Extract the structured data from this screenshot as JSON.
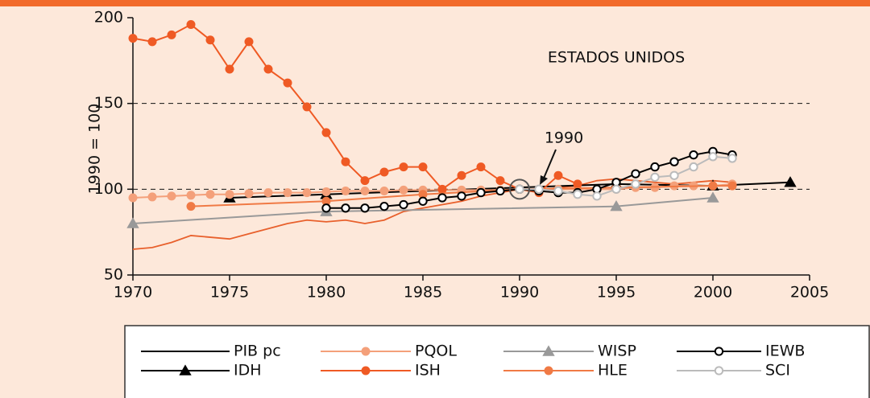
{
  "chart_data": {
    "type": "line",
    "annotations": [
      "ESTADOS UNIDOS",
      "1990"
    ],
    "ylabel": "1990 = 100",
    "xlim": [
      1970,
      2005
    ],
    "xticks": [
      1970,
      1975,
      1980,
      1985,
      1990,
      1995,
      2000,
      2005
    ],
    "ylim": [
      50,
      200
    ],
    "yticks": [
      50,
      100,
      150,
      200
    ],
    "grid": true,
    "series": [
      {
        "name": "PIB pc",
        "color": "#e8602c",
        "marker": "none",
        "legend_color": "#000000",
        "x": [
          1970,
          1971,
          1972,
          1973,
          1974,
          1975,
          1976,
          1977,
          1978,
          1979,
          1980,
          1981,
          1982,
          1983,
          1984,
          1985,
          1986,
          1987,
          1988,
          1989,
          1990,
          1991,
          1992,
          1993,
          1994,
          1995,
          1996,
          1997,
          1998,
          1999,
          2000,
          2001
        ],
        "values": [
          65,
          66,
          69,
          73,
          72,
          71,
          74,
          77,
          80,
          82,
          81,
          82,
          80,
          82,
          87,
          89,
          91,
          93,
          96,
          98,
          100,
          99,
          101,
          102,
          105,
          106,
          105,
          104,
          103,
          104,
          105,
          104
        ]
      },
      {
        "name": "IDH",
        "color": "#000000",
        "marker": "triangle",
        "x": [
          1975,
          1980,
          1995,
          2000,
          2004
        ],
        "values": [
          95,
          97,
          103,
          102,
          104
        ]
      },
      {
        "name": "PQOL",
        "color": "#f4a07a",
        "marker": "circle",
        "x": [
          1970,
          1971,
          1972,
          1973,
          1974,
          1975,
          1976,
          1977,
          1978,
          1979,
          1980,
          1981,
          1982,
          1983,
          1984,
          1985,
          1986,
          1987,
          1988,
          1989,
          1990,
          1991,
          1992,
          1993,
          1994,
          1995,
          1996,
          1997,
          1998,
          1999,
          2000,
          2001
        ],
        "values": [
          95,
          95.5,
          96,
          96.5,
          97,
          97,
          97.5,
          98,
          98,
          98,
          98.5,
          99,
          99,
          99,
          99.5,
          99.5,
          99.5,
          99.5,
          99.5,
          99.5,
          100,
          100,
          100,
          100,
          100,
          100,
          101,
          101,
          102,
          102,
          102,
          103
        ]
      },
      {
        "name": "ISH",
        "color": "#ef5a24",
        "marker": "circle",
        "x": [
          1970,
          1971,
          1972,
          1973,
          1974,
          1975,
          1976,
          1977,
          1978,
          1979,
          1980,
          1981,
          1982,
          1983,
          1984,
          1985,
          1986,
          1987,
          1988,
          1989,
          1990,
          1991,
          1992,
          1993
        ],
        "values": [
          188,
          186,
          190,
          196,
          187,
          170,
          186,
          170,
          162,
          148,
          133,
          116,
          105,
          110,
          113,
          113,
          100,
          108,
          113,
          105,
          100,
          98,
          108,
          103
        ]
      },
      {
        "name": "WISP",
        "color": "#999999",
        "marker": "triangle",
        "x": [
          1970,
          1980,
          1995,
          2000
        ],
        "values": [
          80,
          87,
          90,
          95
        ]
      },
      {
        "name": "HLE",
        "color": "#f07a45",
        "marker": "circle",
        "x": [
          1973,
          1980,
          1985,
          1990,
          1995,
          2000,
          2001
        ],
        "values": [
          90,
          93,
          97,
          100,
          101,
          102,
          102
        ]
      },
      {
        "name": "IEWB",
        "color": "#000000",
        "marker": "open-circle",
        "x": [
          1980,
          1981,
          1982,
          1983,
          1984,
          1985,
          1986,
          1987,
          1988,
          1989,
          1990,
          1991,
          1992,
          1993,
          1994,
          1995,
          1996,
          1997,
          1998,
          1999,
          2000,
          2001
        ],
        "values": [
          89,
          89,
          89,
          90,
          91,
          93,
          95,
          96,
          98,
          99,
          100,
          99,
          98,
          98,
          100,
          104,
          109,
          113,
          116,
          120,
          122,
          120
        ]
      },
      {
        "name": "SCI",
        "color": "#bbbbbb",
        "marker": "open-circle",
        "x": [
          1990,
          1991,
          1992,
          1993,
          1994,
          1995,
          1996,
          1997,
          1998,
          1999,
          2000,
          2001
        ],
        "values": [
          100,
          100,
          99,
          97,
          96,
          100,
          103,
          107,
          108,
          113,
          119,
          118
        ]
      }
    ]
  }
}
